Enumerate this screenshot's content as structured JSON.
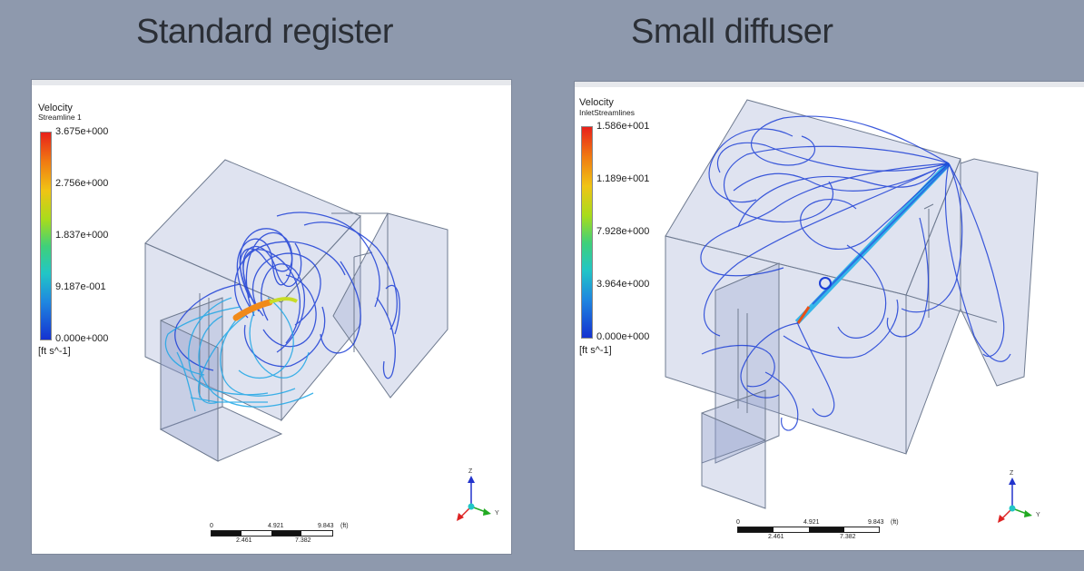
{
  "titles": {
    "left": "Standard register",
    "right": "Small diffuser"
  },
  "left_view": {
    "legend_title": "Velocity",
    "legend_subtitle": "Streamline 1",
    "ticks": [
      "3.675e+000",
      "2.756e+000",
      "1.837e+000",
      "9.187e-001",
      "0.000e+000"
    ],
    "units": "[ft s^-1]",
    "scale": {
      "top": [
        "0",
        "4.921",
        "9.843",
        "(ft)"
      ],
      "bottom": [
        "2.461",
        "7.382"
      ]
    },
    "axes": {
      "z": "Z",
      "y": "Y"
    },
    "colors": {
      "streamline_main": "#1d3fd6",
      "streamline_mid": "#1fa7e6",
      "inlet": "#f08a1a"
    }
  },
  "right_view": {
    "legend_title": "Velocity",
    "legend_subtitle": "InletStreamlines",
    "ticks": [
      "1.586e+001",
      "1.189e+001",
      "7.928e+000",
      "3.964e+000",
      "0.000e+000"
    ],
    "units": "[ft s^-1]",
    "scale": {
      "top": [
        "0",
        "4.921",
        "9.843",
        "(ft)"
      ],
      "bottom": [
        "2.461",
        "7.382"
      ]
    },
    "axes": {
      "z": "Z",
      "y": "Y"
    },
    "colors": {
      "streamline_main": "#1d3fd6",
      "jet": "#35b6e8",
      "inlet": "#e8511a"
    }
  }
}
